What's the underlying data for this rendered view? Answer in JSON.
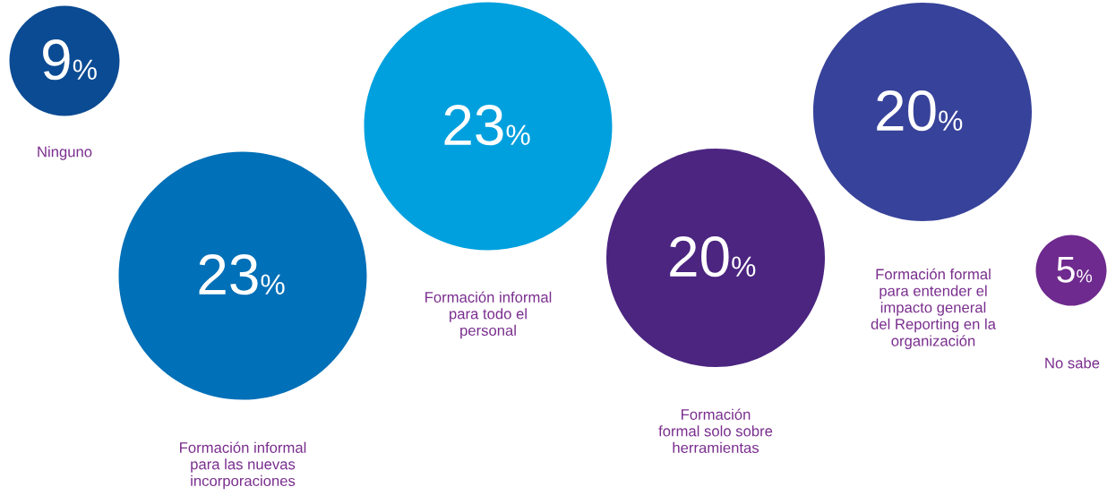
{
  "chart_data": {
    "type": "other",
    "categories": [
      "Ninguno",
      "Formación informal\npara las nuevas\nincorporaciones",
      "Formación informal\npara todo el\npersonal",
      "Formación\nformal solo sobre\nherramientas",
      "Formación formal\npara entender el\nimpacto general\ndel Reporting en la\norganización",
      "No sabe"
    ],
    "values": [
      9,
      23,
      23,
      20,
      20,
      5
    ],
    "value_labels": [
      "9%",
      "23%",
      "23%",
      "20%",
      "20%",
      "5%"
    ],
    "colors": [
      "#0b4b93",
      "#0070b8",
      "#00a0de",
      "#4b2580",
      "#37429a",
      "#6e2a8e"
    ]
  }
}
